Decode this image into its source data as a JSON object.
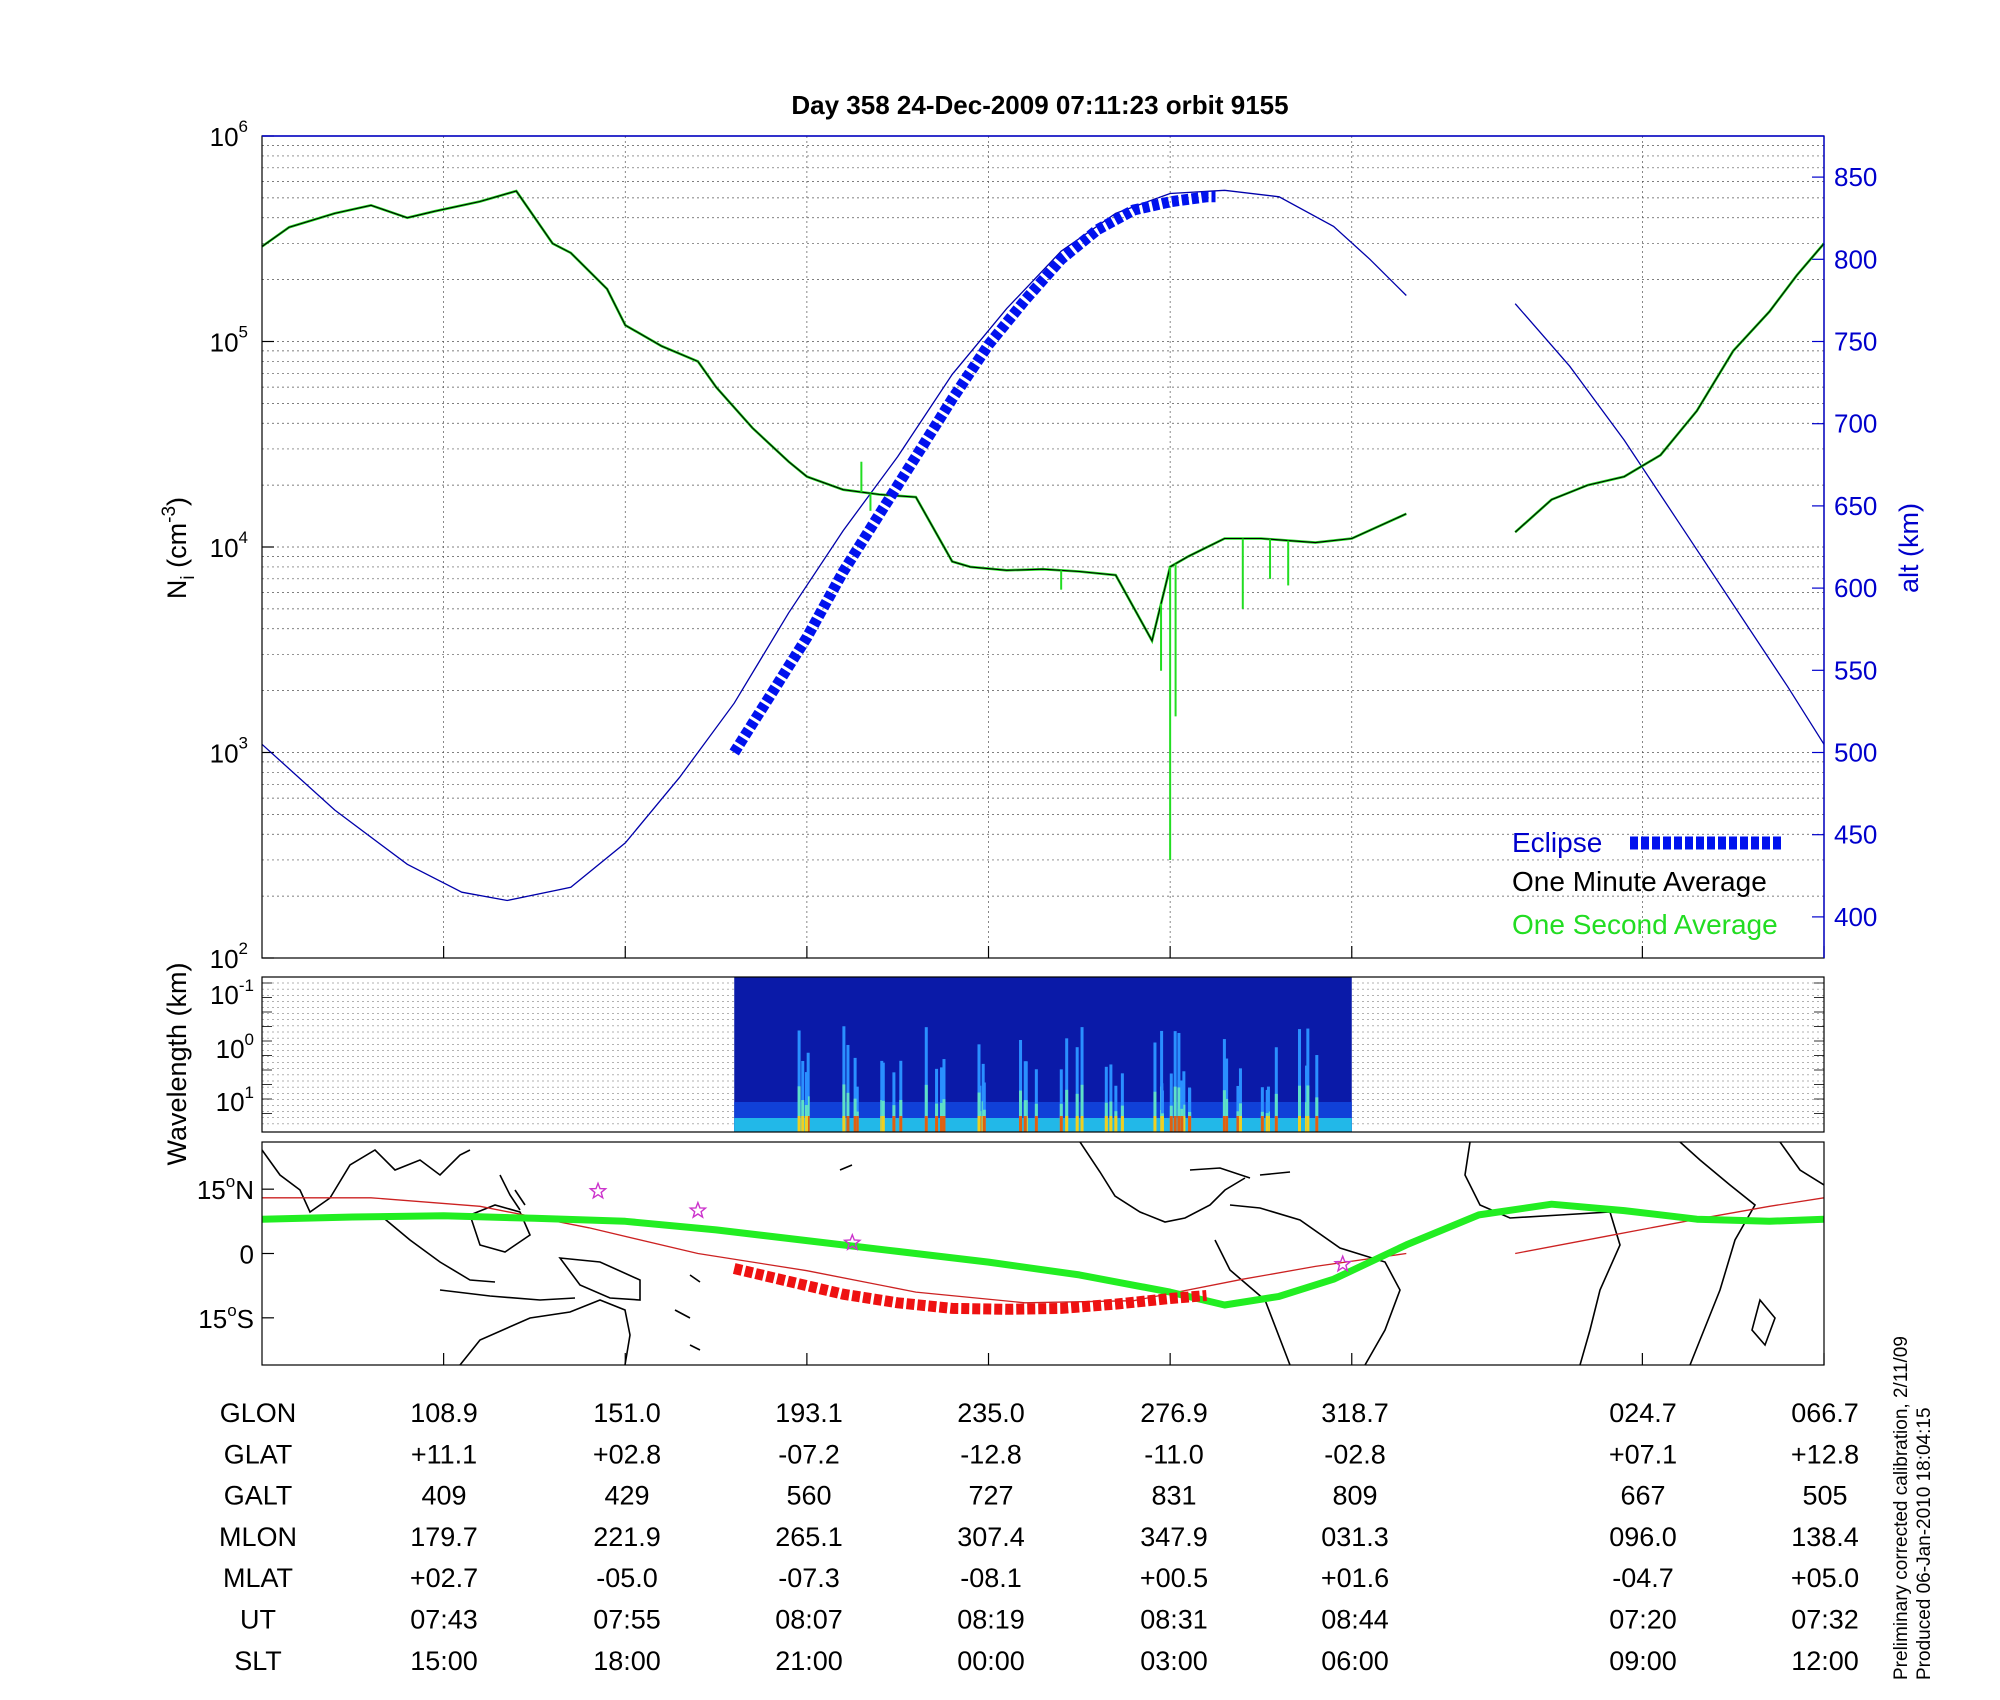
{
  "title": "Day 358  24-Dec-2009 07:11:23   orbit 9155",
  "footer_lines": [
    "Preliminary corrected calibration, 2/11/09",
    "Produced 06-Jan-2010 18:04:15"
  ],
  "colors": {
    "density_one_minute": "#000000",
    "density_one_second": "#22dd22",
    "altitude": "#0000aa",
    "eclipse": "#0011ee",
    "track": "#22ee22",
    "eclipse_track": "#ee1111",
    "magnetic_equator": "#cc2222",
    "star": "#cc33cc",
    "coastline": "#000000"
  },
  "chart_data": [
    {
      "type": "line",
      "panel": "ion-density",
      "ylabel_main": "N",
      "ylabel_sub": "i",
      "ylabel_unit": " (cm",
      "ylabel_exp": "-3",
      "ylabel_close": ")",
      "yscale": "log",
      "ylim": [
        100,
        1000000
      ],
      "ytick_values": [
        100,
        1000,
        10000,
        100000,
        1000000
      ],
      "ytick_labels": [
        {
          "b": "10",
          "e": "2"
        },
        {
          "b": "10",
          "e": "3"
        },
        {
          "b": "10",
          "e": "4"
        },
        {
          "b": "10",
          "e": "5"
        },
        {
          "b": "10",
          "e": "6"
        }
      ],
      "y2label": "alt (km)",
      "y2lim": [
        375,
        875
      ],
      "y2ticks": [
        400,
        450,
        500,
        550,
        600,
        650,
        700,
        750,
        800,
        850
      ],
      "xlim": [
        0,
        8.6
      ],
      "xgrid": [
        1,
        2,
        3,
        4,
        5,
        6,
        7.6,
        8.6
      ],
      "grid": true,
      "legend_placement": "bottom-right",
      "legend": [
        "Eclipse",
        "One Minute Average",
        "One Second Average"
      ],
      "density_segments": [
        {
          "x": [
            0,
            0.15,
            0.4,
            0.6,
            0.8,
            0.95,
            1.2,
            1.4,
            1.6,
            1.7,
            1.9,
            2.0,
            2.2,
            2.4,
            2.5,
            2.7,
            2.9,
            3.0,
            3.2,
            3.4,
            3.6,
            3.8,
            3.9,
            4.1,
            4.3,
            4.5,
            4.7,
            4.9,
            5.0,
            5.1,
            5.3,
            5.5,
            5.8,
            6.0,
            6.3
          ],
          "y": [
            290000,
            360000,
            420000,
            460000,
            400000,
            430000,
            480000,
            540000,
            300000,
            270000,
            180000,
            120000,
            95000,
            80000,
            60000,
            38000,
            26000,
            22000,
            19000,
            18000,
            17500,
            8500,
            8000,
            7700,
            7800,
            7600,
            7300,
            3500,
            8000,
            9000,
            11000,
            11000,
            10500,
            11000,
            14500
          ]
        },
        {
          "x": [
            6.9,
            7.1,
            7.3,
            7.5,
            7.7,
            7.9,
            8.1,
            8.3,
            8.45,
            8.6
          ],
          "y": [
            11800,
            17000,
            20000,
            22000,
            28000,
            46000,
            90000,
            140000,
            210000,
            300000
          ]
        }
      ],
      "one_second_spikes": [
        {
          "x": 3.3,
          "y": 26000
        },
        {
          "x": 3.35,
          "y": 15000
        },
        {
          "x": 4.4,
          "y": 6200
        },
        {
          "x": 4.95,
          "y": 2500
        },
        {
          "x": 5.0,
          "y": 300
        },
        {
          "x": 5.03,
          "y": 1500
        },
        {
          "x": 5.4,
          "y": 5000
        },
        {
          "x": 5.55,
          "y": 7000
        },
        {
          "x": 5.65,
          "y": 6500
        }
      ],
      "altitude_segments": [
        {
          "x": [
            0,
            0.4,
            0.8,
            1.1,
            1.35,
            1.7,
            2.0,
            2.3,
            2.6,
            2.9,
            3.2,
            3.5,
            3.8,
            4.1,
            4.4,
            4.7,
            5.0,
            5.3,
            5.6,
            5.9,
            6.1,
            6.3
          ],
          "y": [
            505,
            465,
            432,
            415,
            410,
            418,
            445,
            485,
            530,
            585,
            635,
            680,
            730,
            770,
            805,
            828,
            840,
            842,
            838,
            820,
            800,
            778
          ]
        },
        {
          "x": [
            6.9,
            7.2,
            7.5,
            7.8,
            8.1,
            8.4,
            8.6
          ],
          "y": [
            773,
            735,
            690,
            640,
            590,
            540,
            505
          ]
        }
      ],
      "eclipse": {
        "x": [
          2.6,
          2.8,
          3.0,
          3.2,
          3.4,
          3.6,
          3.8,
          4.0,
          4.2,
          4.4,
          4.6,
          4.8,
          5.0,
          5.2,
          5.25
        ],
        "y": [
          500,
          535,
          570,
          610,
          645,
          680,
          715,
          748,
          775,
          800,
          818,
          830,
          835,
          838,
          838
        ]
      }
    },
    {
      "type": "heatmap",
      "panel": "wavelength-spectrogram",
      "ylabel": "Wavelength (km)",
      "ytick_labels": [
        {
          "b": "10",
          "e": "-1"
        },
        {
          "b": "10",
          "e": "0"
        },
        {
          "b": "10",
          "e": "1"
        }
      ],
      "xlim": [
        0,
        8.6
      ],
      "data_extent": [
        2.6,
        6.0
      ],
      "peak_x": [
        3.0,
        3.25,
        3.45,
        3.7,
        3.95,
        4.2,
        4.45,
        4.7,
        4.95,
        5.0,
        5.1,
        5.35,
        5.55,
        5.75
      ]
    },
    {
      "type": "scatter",
      "panel": "ground-track-map",
      "ytick_labels": [
        {
          "v": "15",
          "s": "N"
        },
        {
          "v": "0",
          "s": ""
        },
        {
          "v": "15",
          "s": "S"
        }
      ],
      "ylim": [
        -26,
        26
      ],
      "xlim": [
        0,
        8.6
      ],
      "track": {
        "x": [
          0,
          0.5,
          1.0,
          1.5,
          2.0,
          2.5,
          3.0,
          3.5,
          4.0,
          4.5,
          5.0,
          5.3,
          5.6,
          5.9,
          6.3,
          6.7,
          7.1,
          7.5,
          7.9,
          8.3,
          8.6
        ],
        "y": [
          8,
          8.5,
          8.8,
          8.2,
          7.5,
          5.5,
          3.0,
          0.5,
          -2,
          -5,
          -9,
          -12,
          -10,
          -6,
          2,
          9,
          11.5,
          10,
          8,
          7.5,
          8
        ]
      },
      "eclipse_track": {
        "x": [
          2.6,
          2.9,
          3.2,
          3.5,
          3.8,
          4.1,
          4.4,
          4.7,
          5.0,
          5.2
        ],
        "y": [
          -3.5,
          -6.5,
          -9.5,
          -11.5,
          -12.8,
          -13.0,
          -12.8,
          -11.8,
          -10.5,
          -9.8
        ]
      },
      "magnetic_equator_segments": [
        {
          "x": [
            0,
            0.6,
            1.2,
            1.8,
            2.4,
            3.0,
            3.6,
            4.2,
            4.8,
            5.4,
            5.8,
            6.3
          ],
          "y": [
            13,
            13,
            11,
            6,
            0,
            -4,
            -9,
            -11.5,
            -11,
            -6,
            -3,
            0
          ]
        },
        {
          "x": [
            6.9,
            7.4,
            7.9,
            8.3,
            8.6
          ],
          "y": [
            0,
            4,
            8,
            11,
            13
          ]
        }
      ],
      "stars": [
        {
          "x": 1.85,
          "y": 14.5
        },
        {
          "x": 2.4,
          "y": 10
        },
        {
          "x": 3.25,
          "y": 2.5
        },
        {
          "x": 5.95,
          "y": -2.5
        }
      ]
    }
  ],
  "table": {
    "rows": [
      {
        "label": "GLON",
        "values": [
          "108.9",
          "151.0",
          "193.1",
          "235.0",
          "276.9",
          "318.7",
          "024.7",
          "066.7"
        ]
      },
      {
        "label": "GLAT",
        "values": [
          "+11.1",
          "+02.8",
          "-07.2",
          "-12.8",
          "-11.0",
          "-02.8",
          "+07.1",
          "+12.8"
        ]
      },
      {
        "label": "GALT",
        "values": [
          "409",
          "429",
          "560",
          "727",
          "831",
          "809",
          "667",
          "505"
        ]
      },
      {
        "label": "MLON",
        "values": [
          "179.7",
          "221.9",
          "265.1",
          "307.4",
          "347.9",
          "031.3",
          "096.0",
          "138.4"
        ]
      },
      {
        "label": "MLAT",
        "values": [
          "+02.7",
          "-05.0",
          "-07.3",
          "-08.1",
          "+00.5",
          "+01.6",
          "-04.7",
          "+05.0"
        ]
      },
      {
        "label": "UT",
        "values": [
          "07:43",
          "07:55",
          "08:07",
          "08:19",
          "08:31",
          "08:44",
          "07:20",
          "07:32"
        ]
      },
      {
        "label": "SLT",
        "values": [
          "15:00",
          "18:00",
          "21:00",
          "00:00",
          "03:00",
          "06:00",
          "09:00",
          "12:00"
        ]
      }
    ]
  }
}
